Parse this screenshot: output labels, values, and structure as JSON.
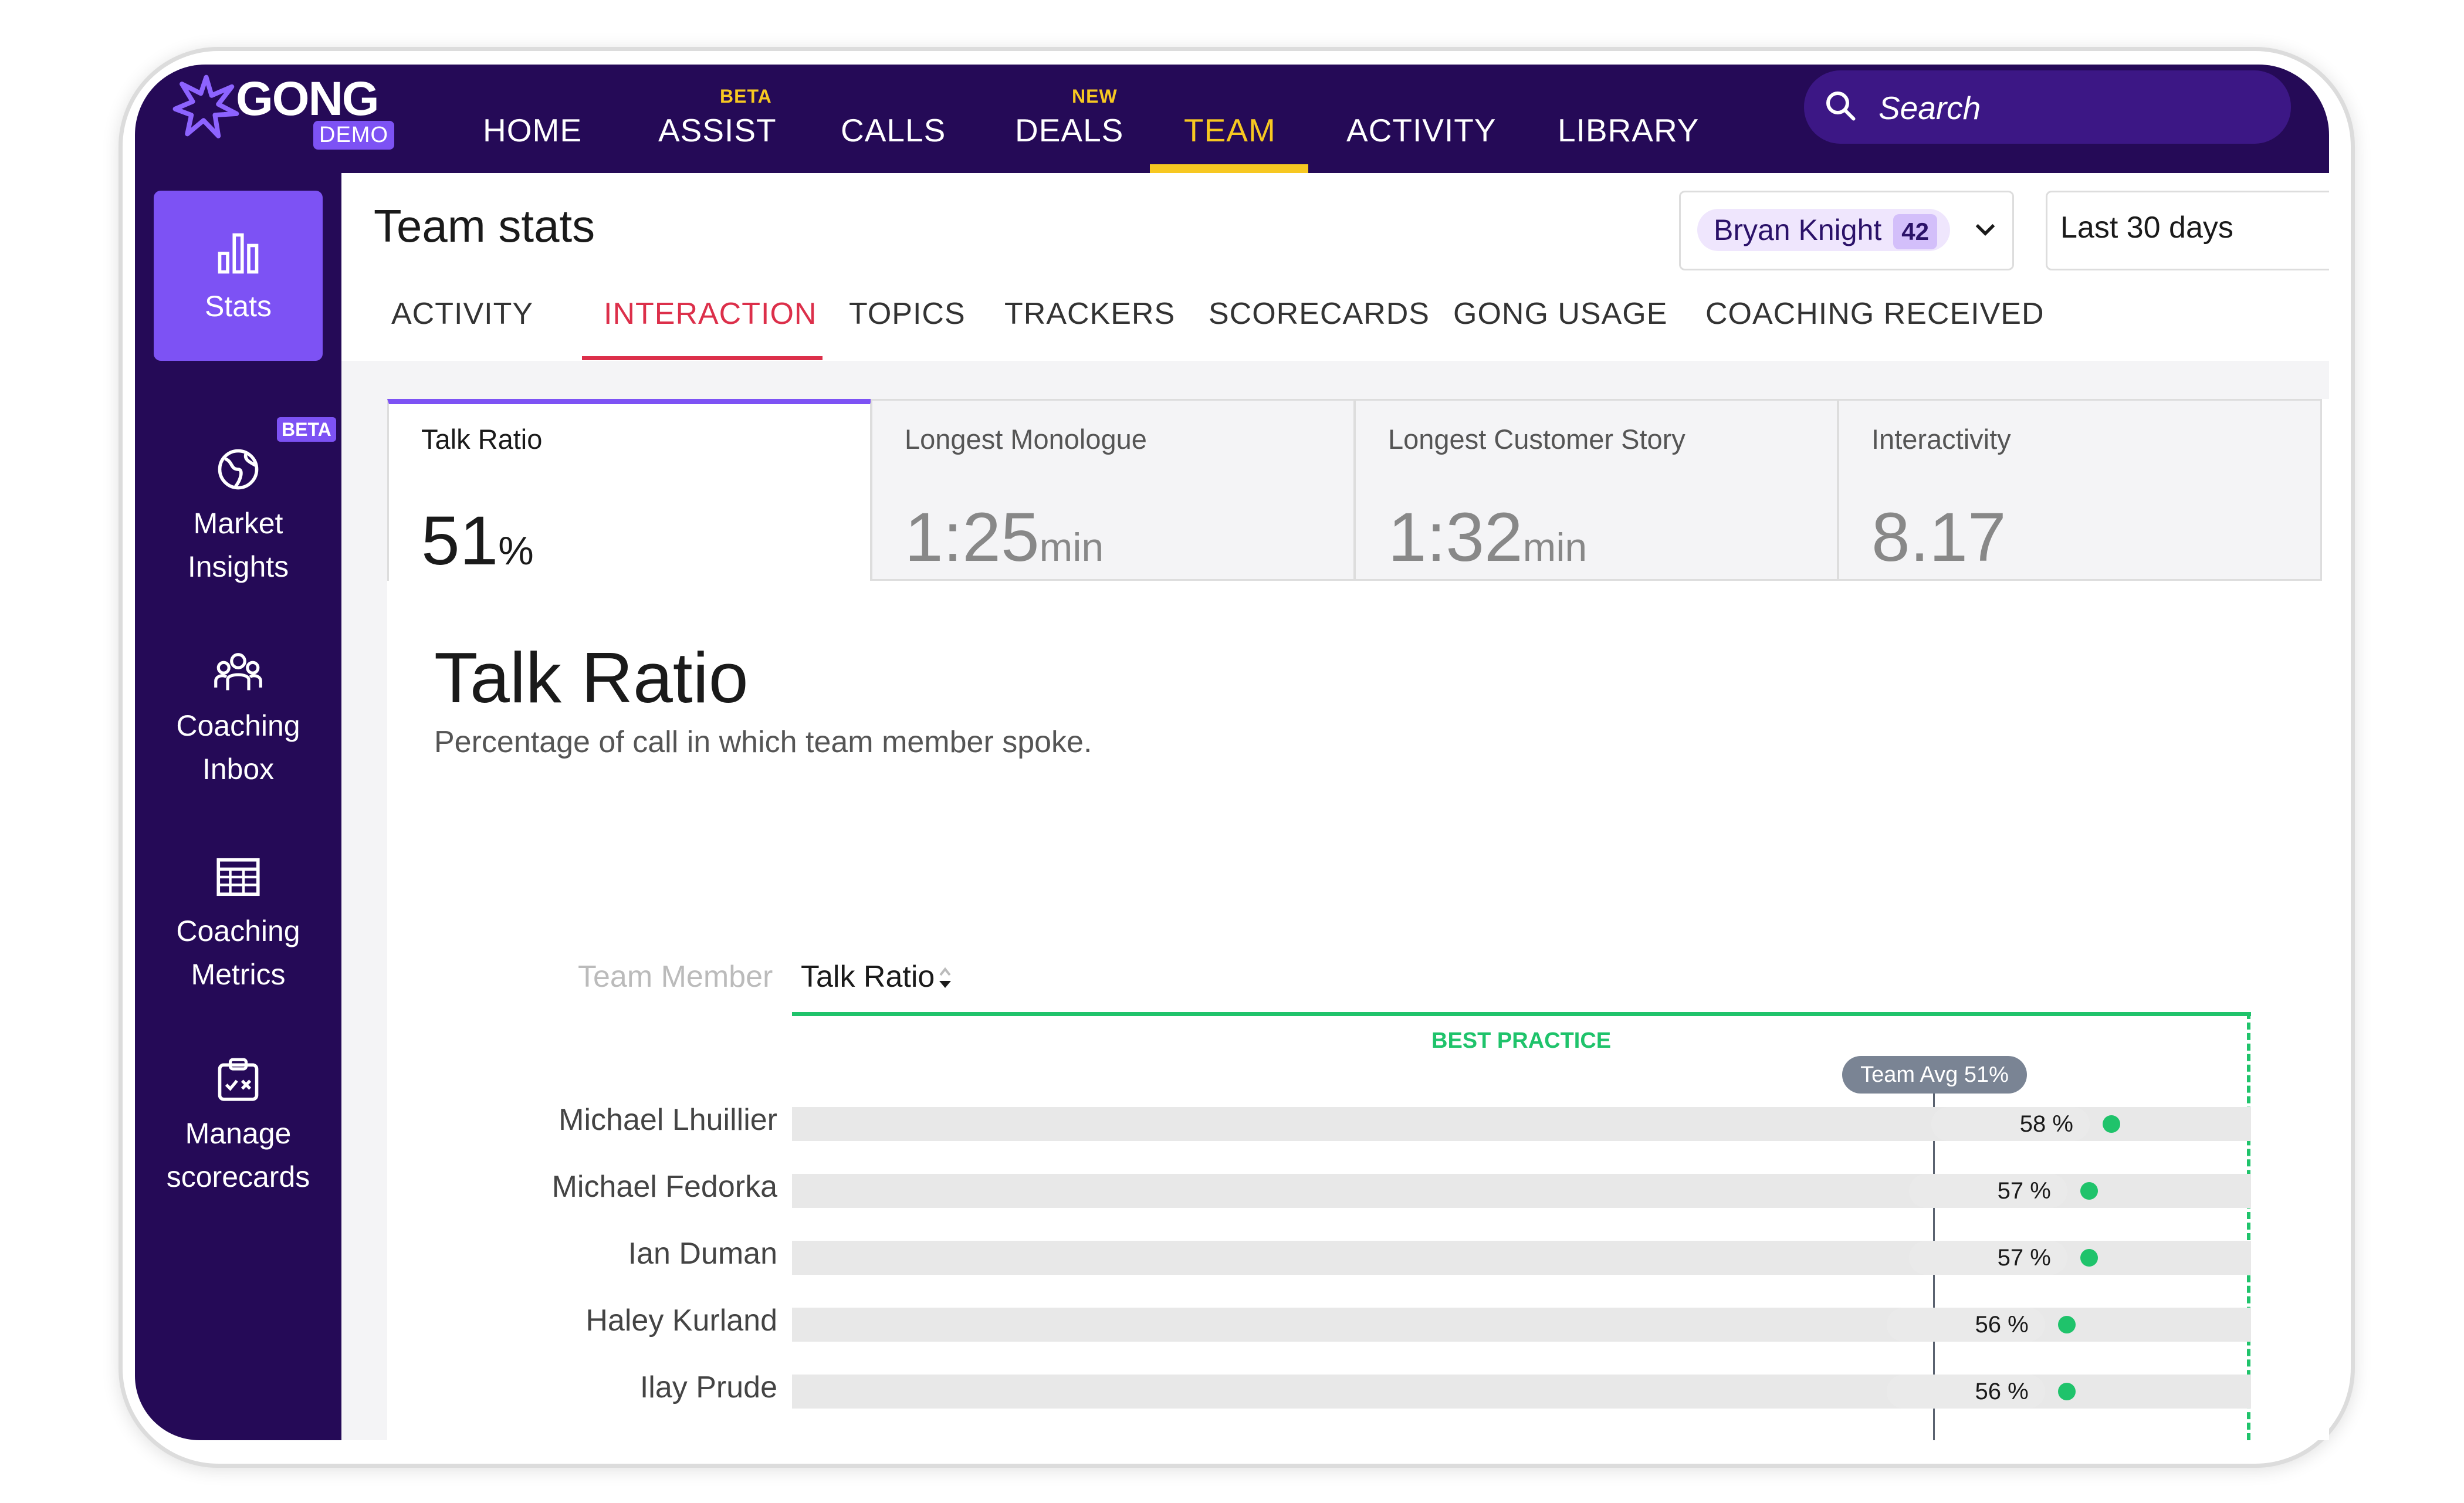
{
  "brand": {
    "name": "GONG",
    "badge": "DEMO"
  },
  "nav": {
    "items": [
      {
        "label": "HOME",
        "tag": ""
      },
      {
        "label": "ASSIST",
        "tag": "BETA"
      },
      {
        "label": "CALLS",
        "tag": ""
      },
      {
        "label": "DEALS",
        "tag": "NEW"
      },
      {
        "label": "TEAM",
        "tag": ""
      },
      {
        "label": "ACTIVITY",
        "tag": ""
      },
      {
        "label": "LIBRARY",
        "tag": ""
      }
    ],
    "active": "TEAM",
    "search_placeholder": "Search"
  },
  "sidebar": {
    "items": [
      {
        "label_line1": "Stats",
        "label_line2": "",
        "icon": "bar-chart-icon",
        "active": true
      },
      {
        "label_line1": "Market",
        "label_line2": "Insights",
        "icon": "globe-icon",
        "badge": "BETA"
      },
      {
        "label_line1": "Coaching",
        "label_line2": "Inbox",
        "icon": "people-icon"
      },
      {
        "label_line1": "Coaching",
        "label_line2": "Metrics",
        "icon": "grid-table-icon"
      },
      {
        "label_line1": "Manage",
        "label_line2": "scorecards",
        "icon": "clipboard-icon"
      }
    ]
  },
  "header": {
    "title": "Team stats",
    "user_filter": {
      "name": "Bryan Knight",
      "count": "42"
    },
    "date_filter": "Last 30 days"
  },
  "tabs": {
    "items": [
      "ACTIVITY",
      "INTERACTION",
      "TOPICS",
      "TRACKERS",
      "SCORECARDS",
      "GONG USAGE",
      "COACHING RECEIVED"
    ],
    "active": "INTERACTION"
  },
  "metrics": [
    {
      "label": "Talk Ratio",
      "value": "51",
      "unit": "%",
      "active": true
    },
    {
      "label": "Longest Monologue",
      "value": "1:25",
      "unit": "min"
    },
    {
      "label": "Longest Customer Story",
      "value": "1:32",
      "unit": "min"
    },
    {
      "label": "Interactivity",
      "value": "8.17",
      "unit": ""
    }
  ],
  "section": {
    "title": "Talk Ratio",
    "subtitle": "Percentage of call in which team member spoke."
  },
  "table": {
    "col_member": "Team Member",
    "col_metric": "Talk Ratio",
    "best_practice_label": "BEST PRACTICE",
    "team_avg_label": "Team Avg 51%",
    "team_avg_value": 51,
    "rows": [
      {
        "name": "Michael Lhuillier",
        "value_label": "58 %",
        "value": 58
      },
      {
        "name": "Michael Fedorka",
        "value_label": "57 %",
        "value": 57
      },
      {
        "name": "Ian Duman",
        "value_label": "57 %",
        "value": 57
      },
      {
        "name": "Haley Kurland",
        "value_label": "56 %",
        "value": 56
      },
      {
        "name": "Ilay Prude",
        "value_label": "56 %",
        "value": 56
      }
    ]
  },
  "colors": {
    "nav_bg": "#250a57",
    "accent_purple": "#7d52f4",
    "active_yellow": "#f7c821",
    "tab_active_red": "#dc2f4a",
    "best_practice_green": "#1fc36b"
  }
}
